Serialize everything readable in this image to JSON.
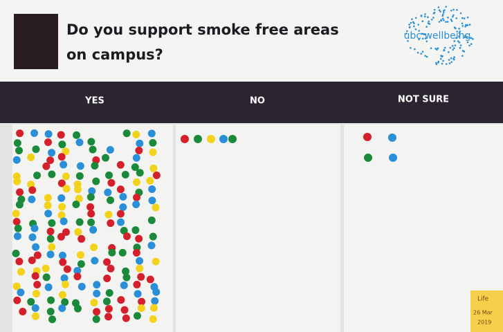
{
  "header": {
    "title_line1": "Do you support smoke free areas",
    "title_line2": "on campus?",
    "logo": "ubc wellbeing"
  },
  "columns": [
    "YES",
    "NO",
    "NOT SURE"
  ],
  "note": {
    "line1": "Life",
    "line2": "26 Mar",
    "line3": "2019"
  }
}
